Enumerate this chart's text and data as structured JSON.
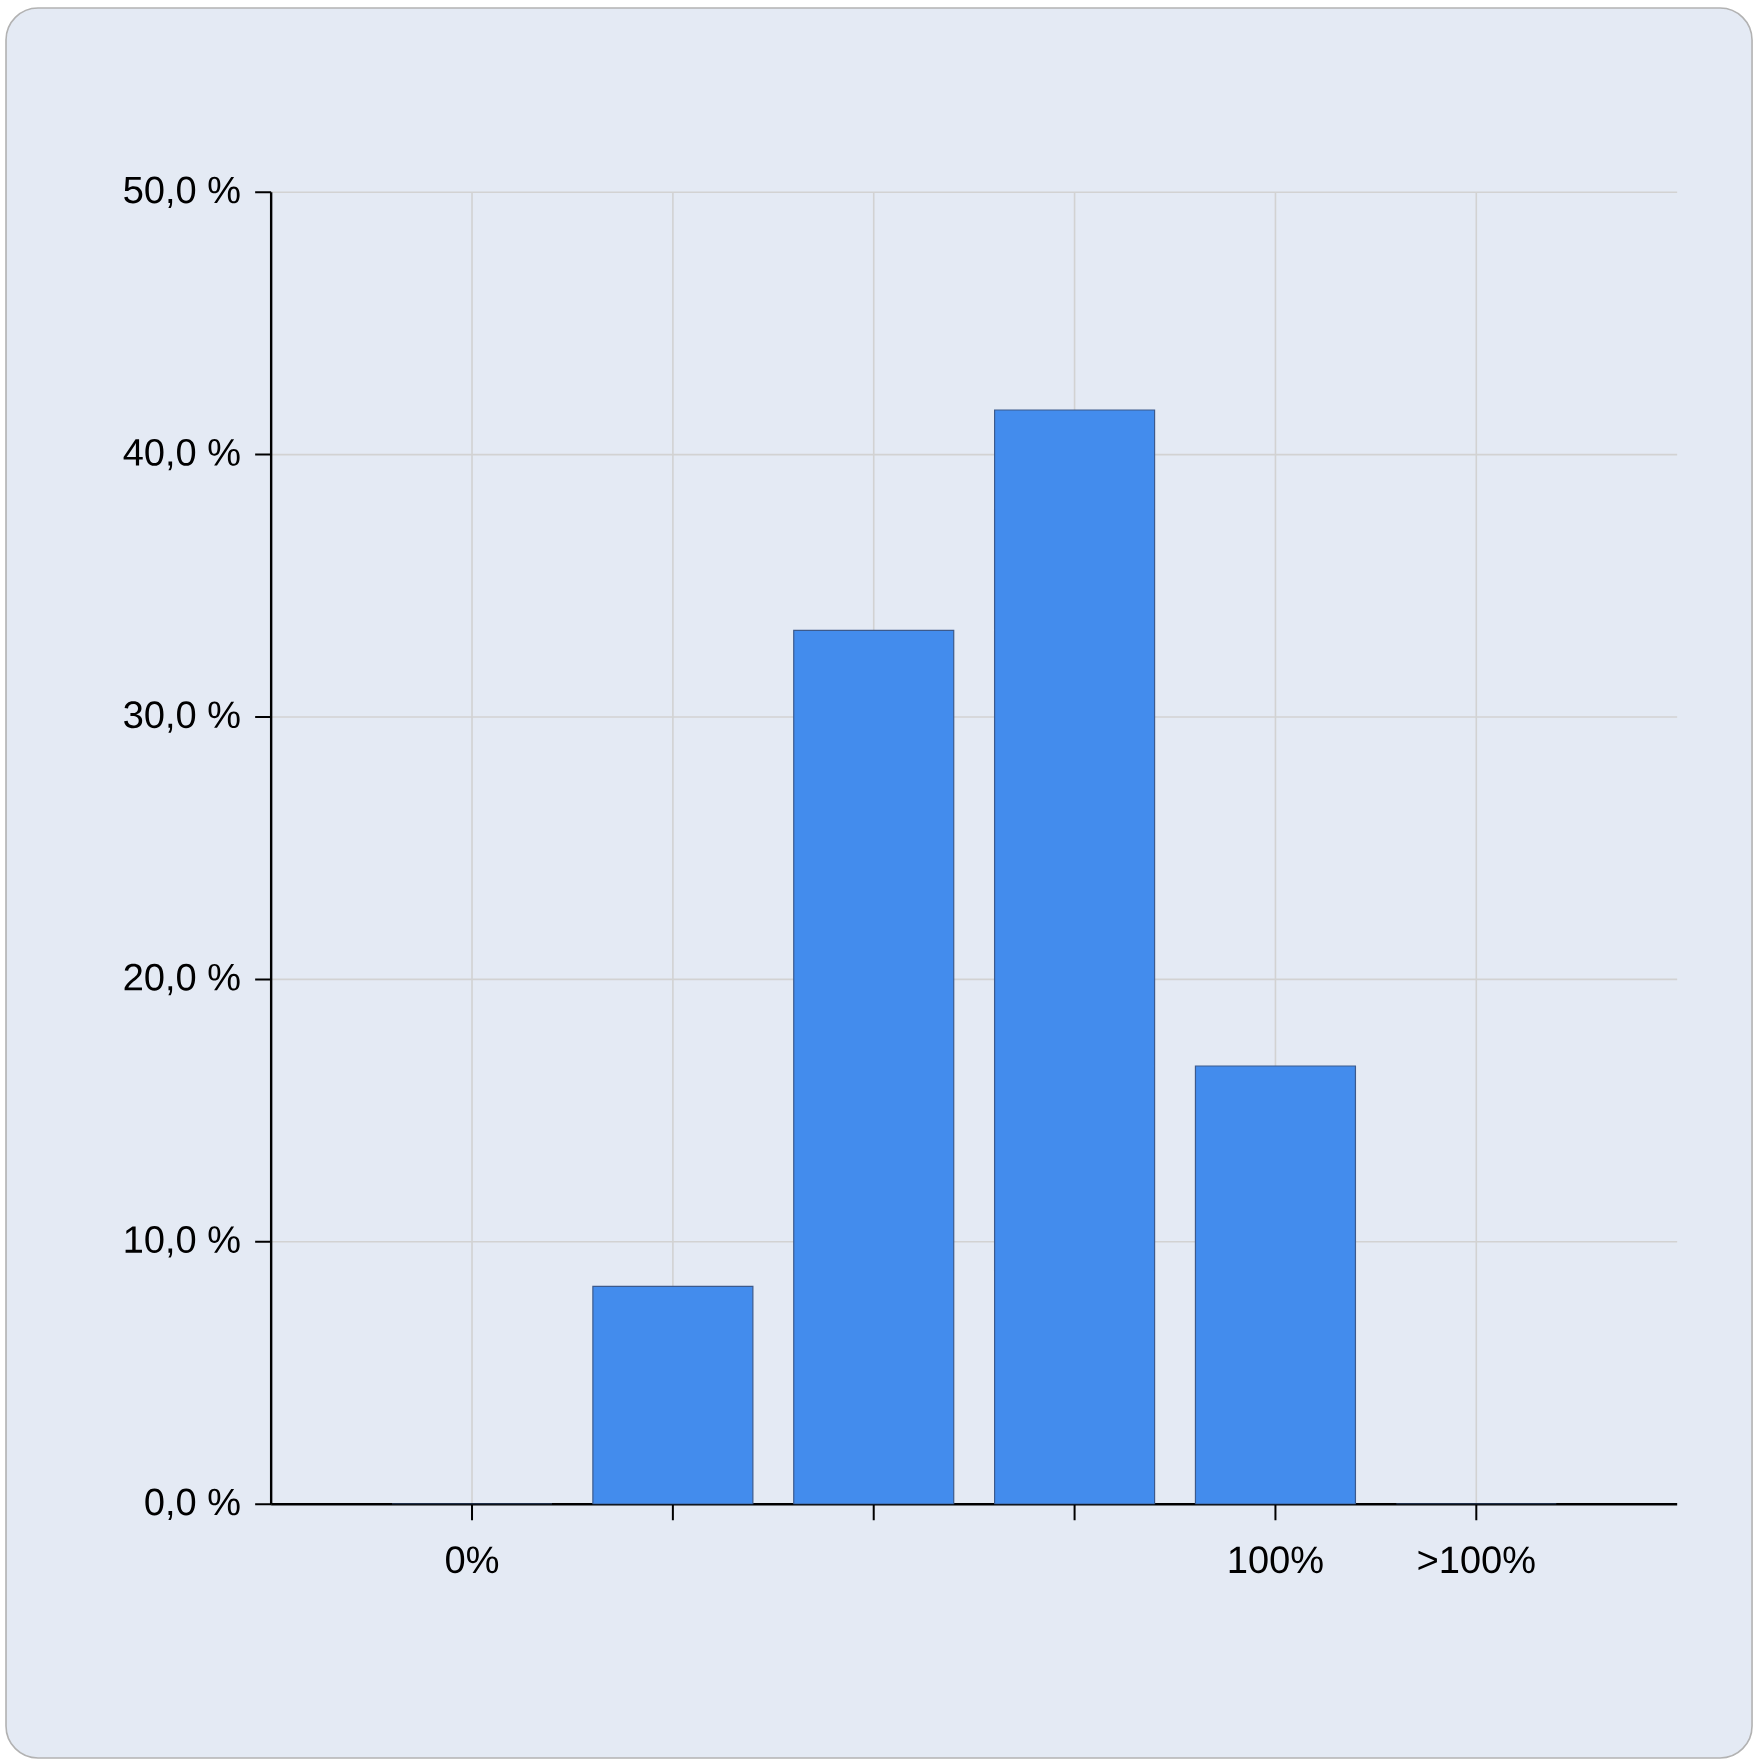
{
  "chart_data": {
    "type": "bar",
    "categories": [
      "0%",
      null,
      null,
      null,
      "100%",
      ">100%"
    ],
    "values": [
      0,
      8.3,
      33.3,
      41.7,
      16.7,
      0
    ],
    "color": "#438ced",
    "ylim": [
      0,
      50
    ],
    "yticks": [
      {
        "value": 0,
        "label": "0,0 %"
      },
      {
        "value": 10,
        "label": "10,0 %"
      },
      {
        "value": 20,
        "label": "20,0 %"
      },
      {
        "value": 30,
        "label": "30,0 %"
      },
      {
        "value": 40,
        "label": "40,0 %"
      },
      {
        "value": 50,
        "label": "50,0 %"
      }
    ],
    "grid": true
  }
}
